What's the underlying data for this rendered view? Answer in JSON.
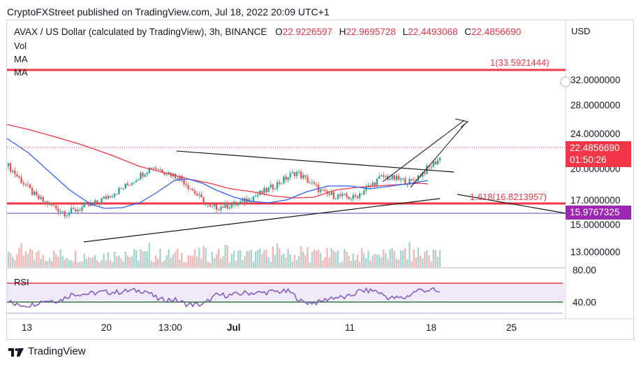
{
  "header": {
    "published": "CryptoFXStreet published on TradingView.com, Jul 18, 2022 20:09 UTC+1"
  },
  "legend": {
    "symbol": "AVAX / US Dollar (calculated by TradingView), 3h, BINANCE",
    "o_label": "O",
    "o_value": "22.9226597",
    "h_label": "H",
    "h_value": "22.9695728",
    "l_label": "L",
    "l_value": "22.4493068",
    "c_label": "C",
    "c_value": "22.4856690",
    "indicators": [
      "Vol",
      "MA",
      "MA"
    ],
    "rsi_label": "RSI"
  },
  "price_axis": {
    "currency": "USD",
    "ticks": [
      "32.0000000",
      "28.0000000",
      "24.0000000",
      "20.0000000",
      "17.0000000",
      "15.0000000",
      "13.0000000"
    ],
    "rsi_ticks": [
      "80.00",
      "40.00"
    ]
  },
  "time_axis": {
    "ticks": [
      "13",
      "20",
      "13:00",
      "Jul",
      "11",
      "18",
      "25"
    ]
  },
  "price_tag": {
    "value": "22.4856690",
    "countdown": "01:50:26",
    "color": "#f23645"
  },
  "level_tag": {
    "value": "15.9767325",
    "color": "#9c27b0"
  },
  "fib": {
    "upper": "1(33.5921444)",
    "lower": "1.618(16.8213957)"
  },
  "footer": {
    "brand": "TradingView"
  },
  "colors": {
    "up": "#26a69a",
    "down": "#ef5350",
    "ma_fast": "#2962ff",
    "ma_slow": "#f23645",
    "rsi": "#7e57c2",
    "fib": "#f23645"
  },
  "chart_data": {
    "type": "candlestick",
    "symbol": "AVAX/USD",
    "timeframe": "3h",
    "close_series_approx": [
      {
        "x": "13",
        "y": 21.5
      },
      {
        "x": "15",
        "y": 17.5
      },
      {
        "x": "17",
        "y": 15.6
      },
      {
        "x": "20",
        "y": 16.8
      },
      {
        "x": "22",
        "y": 18.8
      },
      {
        "x": "13:00",
        "y": 21.5
      },
      {
        "x": "27",
        "y": 20.0
      },
      {
        "x": "Jul",
        "y": 16.2
      },
      {
        "x": "5",
        "y": 16.8
      },
      {
        "x": "7",
        "y": 18.5
      },
      {
        "x": "9",
        "y": 20.8
      },
      {
        "x": "11",
        "y": 18.0
      },
      {
        "x": "13",
        "y": 17.5
      },
      {
        "x": "15",
        "y": 20.2
      },
      {
        "x": "17",
        "y": 19.5
      },
      {
        "x": "18",
        "y": 22.49
      }
    ],
    "levels": [
      33.5921444,
      22.485669,
      16.8213957,
      15.9767325
    ],
    "rsi_levels": [
      70,
      30
    ],
    "y_range": [
      11.5,
      35
    ]
  }
}
